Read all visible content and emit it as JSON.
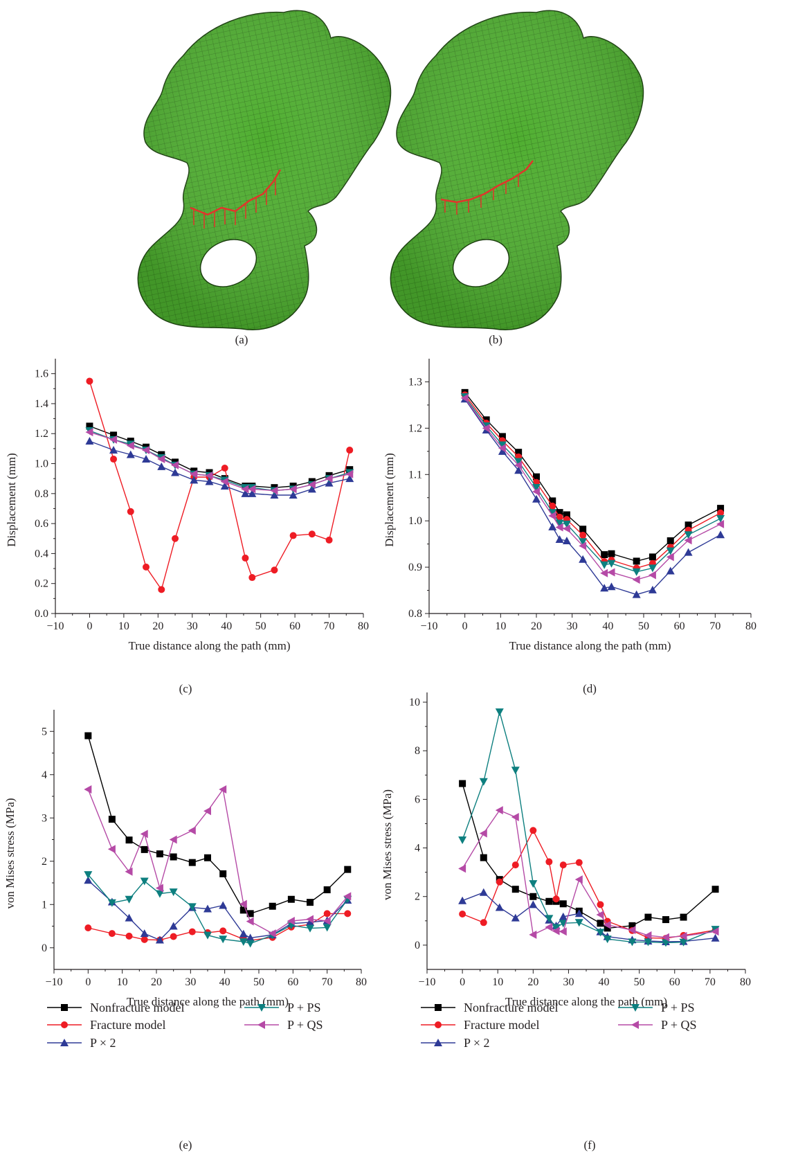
{
  "panels": {
    "a": "(a)",
    "b": "(b)",
    "c": "(c)",
    "d": "(d)",
    "e": "(e)",
    "f": "(f)"
  },
  "legend": [
    {
      "name": "Nonfracture model",
      "color": "#000000",
      "marker": "square"
    },
    {
      "name": "Fracture model",
      "color": "#ee1c24",
      "marker": "circle"
    },
    {
      "name": "P × 2",
      "color": "#2e3a96",
      "marker": "triangle-up"
    },
    {
      "name": "P + PS",
      "color": "#0d7f7f",
      "marker": "triangle-down"
    },
    {
      "name": "P + QS",
      "color": "#b54aa6",
      "marker": "triangle-left"
    }
  ],
  "colors": {
    "mesh_fill": "#4aa82e",
    "mesh_dark": "#2f7d1c",
    "mesh_light": "#6cc24a",
    "fracture_line": "#e0352b"
  },
  "chart_data": [
    {
      "id": "c",
      "type": "line",
      "xlabel": "True distance along the path (mm)",
      "ylabel": "Displacement (mm)",
      "xlim": [
        -10,
        80
      ],
      "ylim": [
        0,
        1.7
      ],
      "xticks": [
        -10,
        0,
        10,
        20,
        30,
        40,
        50,
        60,
        70,
        80
      ],
      "xtick_labels": [
        "−10",
        "0",
        "10",
        "20",
        "30",
        "40",
        "50",
        "60",
        "70",
        "80"
      ],
      "yticks": [
        0,
        0.2,
        0.4,
        0.6,
        0.8,
        1.0,
        1.2,
        1.4,
        1.6
      ],
      "ytick_labels": [
        "0.0",
        "0.2",
        "0.4",
        "0.6",
        "0.8",
        "1.0",
        "1.2",
        "1.4",
        "1.6"
      ],
      "x": [
        0,
        7,
        12,
        16.5,
        21,
        25,
        30.5,
        35,
        39.5,
        45.5,
        47.5,
        54,
        59.5,
        65,
        70,
        76
      ],
      "series": [
        {
          "name": "Nonfracture model",
          "values": [
            1.25,
            1.19,
            1.15,
            1.11,
            1.06,
            1.01,
            0.95,
            0.94,
            0.9,
            0.85,
            0.85,
            0.84,
            0.85,
            0.88,
            0.92,
            0.96
          ]
        },
        {
          "name": "Fracture model",
          "values": [
            1.55,
            1.03,
            0.68,
            0.31,
            0.16,
            0.5,
            0.91,
            0.91,
            0.97,
            0.37,
            0.24,
            0.29,
            0.52,
            0.53,
            0.49,
            1.09
          ]
        },
        {
          "name": "P × 2",
          "values": [
            1.15,
            1.09,
            1.06,
            1.03,
            0.98,
            0.94,
            0.89,
            0.88,
            0.85,
            0.8,
            0.8,
            0.79,
            0.79,
            0.83,
            0.87,
            0.9
          ]
        },
        {
          "name": "P + PS",
          "values": [
            1.22,
            1.16,
            1.13,
            1.09,
            1.04,
            0.99,
            0.93,
            0.92,
            0.89,
            0.84,
            0.84,
            0.82,
            0.83,
            0.86,
            0.9,
            0.94
          ]
        },
        {
          "name": "P + QS",
          "values": [
            1.21,
            1.16,
            1.12,
            1.09,
            1.03,
            0.99,
            0.93,
            0.92,
            0.88,
            0.83,
            0.83,
            0.82,
            0.83,
            0.86,
            0.9,
            0.93
          ]
        }
      ]
    },
    {
      "id": "d",
      "type": "line",
      "xlabel": "True distance along the path (mm)",
      "ylabel": "Displacement (mm)",
      "xlim": [
        -10,
        80
      ],
      "ylim": [
        0.8,
        1.35
      ],
      "xticks": [
        -10,
        0,
        10,
        20,
        30,
        40,
        50,
        60,
        70,
        80
      ],
      "xtick_labels": [
        "−10",
        "0",
        "10",
        "20",
        "30",
        "40",
        "50",
        "60",
        "70",
        "80"
      ],
      "yticks": [
        0.8,
        0.9,
        1.0,
        1.1,
        1.2,
        1.3
      ],
      "ytick_labels": [
        "0.8",
        "0.9",
        "1.0",
        "1.1",
        "1.2",
        "1.3"
      ],
      "x": [
        0,
        6,
        10.5,
        15,
        20,
        24.5,
        26.5,
        28.5,
        33,
        39,
        41,
        48,
        52.5,
        57.5,
        62.5,
        71.5
      ],
      "series": [
        {
          "name": "Nonfracture model",
          "values": [
            1.277,
            1.218,
            1.182,
            1.148,
            1.095,
            1.043,
            1.018,
            1.013,
            0.982,
            0.927,
            0.929,
            0.913,
            0.922,
            0.957,
            0.991,
            1.027
          ]
        },
        {
          "name": "Fracture model",
          "values": [
            1.272,
            1.211,
            1.173,
            1.138,
            1.083,
            1.032,
            1.008,
            1.003,
            0.969,
            0.912,
            0.915,
            0.898,
            0.908,
            0.943,
            0.98,
            1.017
          ]
        },
        {
          "name": "P × 2",
          "values": [
            1.263,
            1.196,
            1.15,
            1.109,
            1.047,
            0.987,
            0.96,
            0.957,
            0.917,
            0.855,
            0.858,
            0.841,
            0.851,
            0.892,
            0.932,
            0.97
          ]
        },
        {
          "name": "P + PS",
          "values": [
            1.268,
            1.205,
            1.164,
            1.128,
            1.072,
            1.018,
            0.995,
            0.993,
            0.955,
            0.905,
            0.908,
            0.89,
            0.898,
            0.935,
            0.97,
            1.005
          ]
        },
        {
          "name": "P + QS",
          "values": [
            1.265,
            1.2,
            1.157,
            1.12,
            1.063,
            1.011,
            0.986,
            0.983,
            0.946,
            0.887,
            0.889,
            0.873,
            0.883,
            0.922,
            0.958,
            0.993
          ]
        }
      ]
    },
    {
      "id": "e",
      "type": "line",
      "xlabel": "True distance along the path (mm)",
      "ylabel": "von Mises stress (MPa)",
      "xlim": [
        -10,
        80
      ],
      "ylim": [
        -0.5,
        5.5
      ],
      "xticks": [
        -10,
        0,
        10,
        20,
        30,
        40,
        50,
        60,
        70,
        80
      ],
      "xtick_labels": [
        "−10",
        "0",
        "10",
        "20",
        "30",
        "40",
        "50",
        "60",
        "70",
        "80"
      ],
      "yticks": [
        0,
        1,
        2,
        3,
        4,
        5
      ],
      "ytick_labels": [
        "0",
        "1",
        "2",
        "3",
        "4",
        "5"
      ],
      "x": [
        0,
        7,
        12,
        16.5,
        21,
        25,
        30.5,
        35,
        39.5,
        45.5,
        47.5,
        54,
        59.5,
        65,
        70,
        76
      ],
      "series": [
        {
          "name": "Nonfracture model",
          "values": [
            4.9,
            2.97,
            2.49,
            2.27,
            2.17,
            2.1,
            1.97,
            2.08,
            1.71,
            0.87,
            0.79,
            0.96,
            1.12,
            1.05,
            1.34,
            1.81
          ]
        },
        {
          "name": "Fracture model",
          "values": [
            0.46,
            0.33,
            0.27,
            0.19,
            0.18,
            0.26,
            0.37,
            0.35,
            0.39,
            0.2,
            0.17,
            0.24,
            0.48,
            0.54,
            0.79,
            0.79
          ]
        },
        {
          "name": "P × 2",
          "values": [
            1.56,
            1.06,
            0.69,
            0.33,
            0.18,
            0.5,
            0.93,
            0.9,
            0.98,
            0.32,
            0.23,
            0.3,
            0.56,
            0.59,
            0.63,
            1.1
          ]
        },
        {
          "name": "P + PS",
          "values": [
            1.69,
            1.04,
            1.12,
            1.54,
            1.25,
            1.29,
            0.95,
            0.29,
            0.2,
            0.14,
            0.1,
            0.29,
            0.52,
            0.45,
            0.47,
            1.12
          ]
        },
        {
          "name": "P + QS",
          "values": [
            3.66,
            2.28,
            1.76,
            2.63,
            1.38,
            2.5,
            2.71,
            3.16,
            3.66,
            1.01,
            0.61,
            0.33,
            0.62,
            0.66,
            0.62,
            1.19
          ]
        }
      ]
    },
    {
      "id": "f",
      "type": "line",
      "xlabel": "True distance along the path (mm)",
      "ylabel": "von Mises stress (MPa)",
      "xlim": [
        -10,
        80
      ],
      "ylim": [
        -1,
        10.4
      ],
      "xticks": [
        -10,
        0,
        10,
        20,
        30,
        40,
        50,
        60,
        70,
        80
      ],
      "xtick_labels": [
        "−10",
        "0",
        "10",
        "20",
        "30",
        "40",
        "50",
        "60",
        "70",
        "80"
      ],
      "yticks": [
        0,
        2,
        4,
        6,
        8,
        10
      ],
      "ytick_labels": [
        "0",
        "2",
        "4",
        "6",
        "8",
        "10"
      ],
      "x": [
        0,
        6,
        10.5,
        15,
        20,
        24.5,
        26.5,
        28.5,
        33,
        39,
        41,
        48,
        52.5,
        57.5,
        62.5,
        71.5
      ],
      "series": [
        {
          "name": "Nonfracture model",
          "values": [
            6.65,
            3.6,
            2.7,
            2.3,
            2.0,
            1.8,
            1.8,
            1.7,
            1.4,
            0.9,
            0.7,
            0.8,
            1.15,
            1.05,
            1.15,
            2.3
          ]
        },
        {
          "name": "Fracture model",
          "values": [
            1.28,
            0.93,
            2.6,
            3.3,
            4.72,
            3.43,
            1.9,
            3.3,
            3.4,
            1.67,
            0.98,
            0.6,
            0.3,
            0.28,
            0.4,
            0.62
          ]
        },
        {
          "name": "P × 2",
          "values": [
            1.83,
            2.17,
            1.55,
            1.12,
            1.67,
            1.03,
            0.8,
            1.17,
            1.3,
            0.55,
            0.35,
            0.22,
            0.17,
            0.14,
            0.15,
            0.29
          ]
        },
        {
          "name": "P + PS",
          "values": [
            4.33,
            6.73,
            9.6,
            7.2,
            2.53,
            1.1,
            0.72,
            0.9,
            0.93,
            0.53,
            0.25,
            0.13,
            0.13,
            0.1,
            0.12,
            0.65
          ]
        },
        {
          "name": "P + QS",
          "values": [
            3.15,
            4.6,
            5.55,
            5.27,
            0.43,
            0.74,
            0.58,
            0.56,
            2.7,
            1.25,
            0.83,
            0.62,
            0.4,
            0.32,
            0.37,
            0.56
          ]
        }
      ]
    }
  ]
}
